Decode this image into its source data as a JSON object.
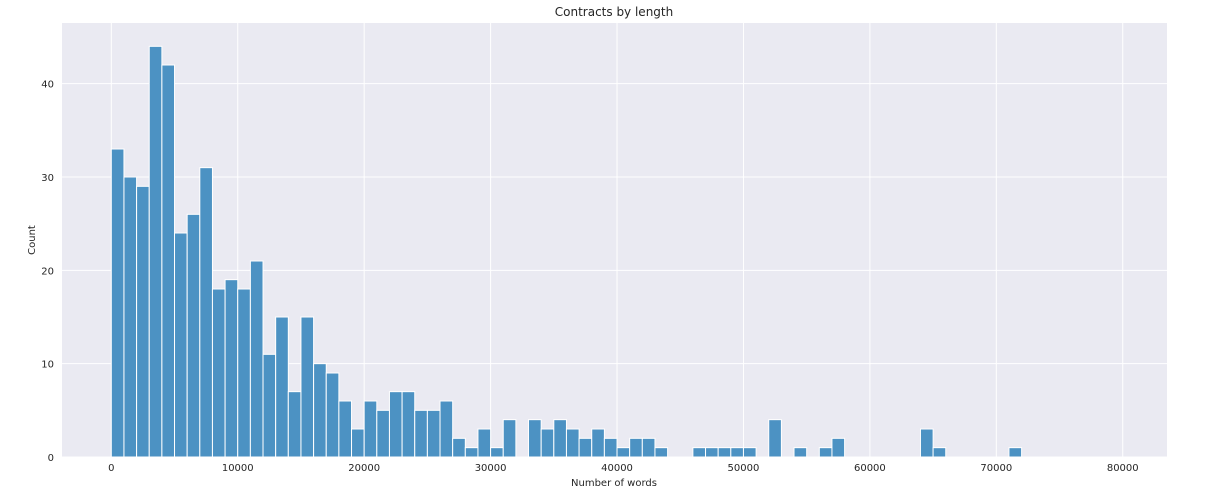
{
  "chart_data": {
    "type": "bar",
    "title": "Contracts by length",
    "xlabel": "Number of words",
    "ylabel": "Count",
    "xlim": [
      -3900,
      83500
    ],
    "ylim": [
      0,
      46.5
    ],
    "xticks": [
      0,
      10000,
      20000,
      30000,
      40000,
      50000,
      60000,
      70000,
      80000
    ],
    "xtick_labels": [
      "0",
      "10000",
      "20000",
      "30000",
      "40000",
      "50000",
      "60000",
      "70000",
      "80000"
    ],
    "yticks": [
      0,
      10,
      20,
      30,
      40
    ],
    "ytick_labels": [
      "0",
      "10",
      "20",
      "30",
      "40"
    ],
    "grid": true,
    "bin_start": 0,
    "bin_width": 1000,
    "values": [
      33,
      30,
      29,
      44,
      42,
      24,
      26,
      31,
      18,
      19,
      18,
      21,
      11,
      15,
      7,
      15,
      10,
      9,
      6,
      3,
      6,
      5,
      7,
      7,
      5,
      5,
      6,
      2,
      1,
      3,
      1,
      4,
      0,
      4,
      3,
      4,
      3,
      2,
      3,
      2,
      1,
      2,
      2,
      1,
      0,
      0,
      1,
      1,
      1,
      1,
      1,
      0,
      4,
      0,
      1,
      0,
      1,
      2,
      0,
      0,
      0,
      0,
      0,
      0,
      3,
      1,
      0,
      0,
      0,
      0,
      0,
      1,
      0,
      0,
      0,
      0,
      0,
      0,
      0,
      0
    ],
    "colors": {
      "bar": "#4c92c3",
      "bar_edge": "#ffffff",
      "plot_background": "#eaeaf2",
      "grid": "#ffffff"
    }
  }
}
